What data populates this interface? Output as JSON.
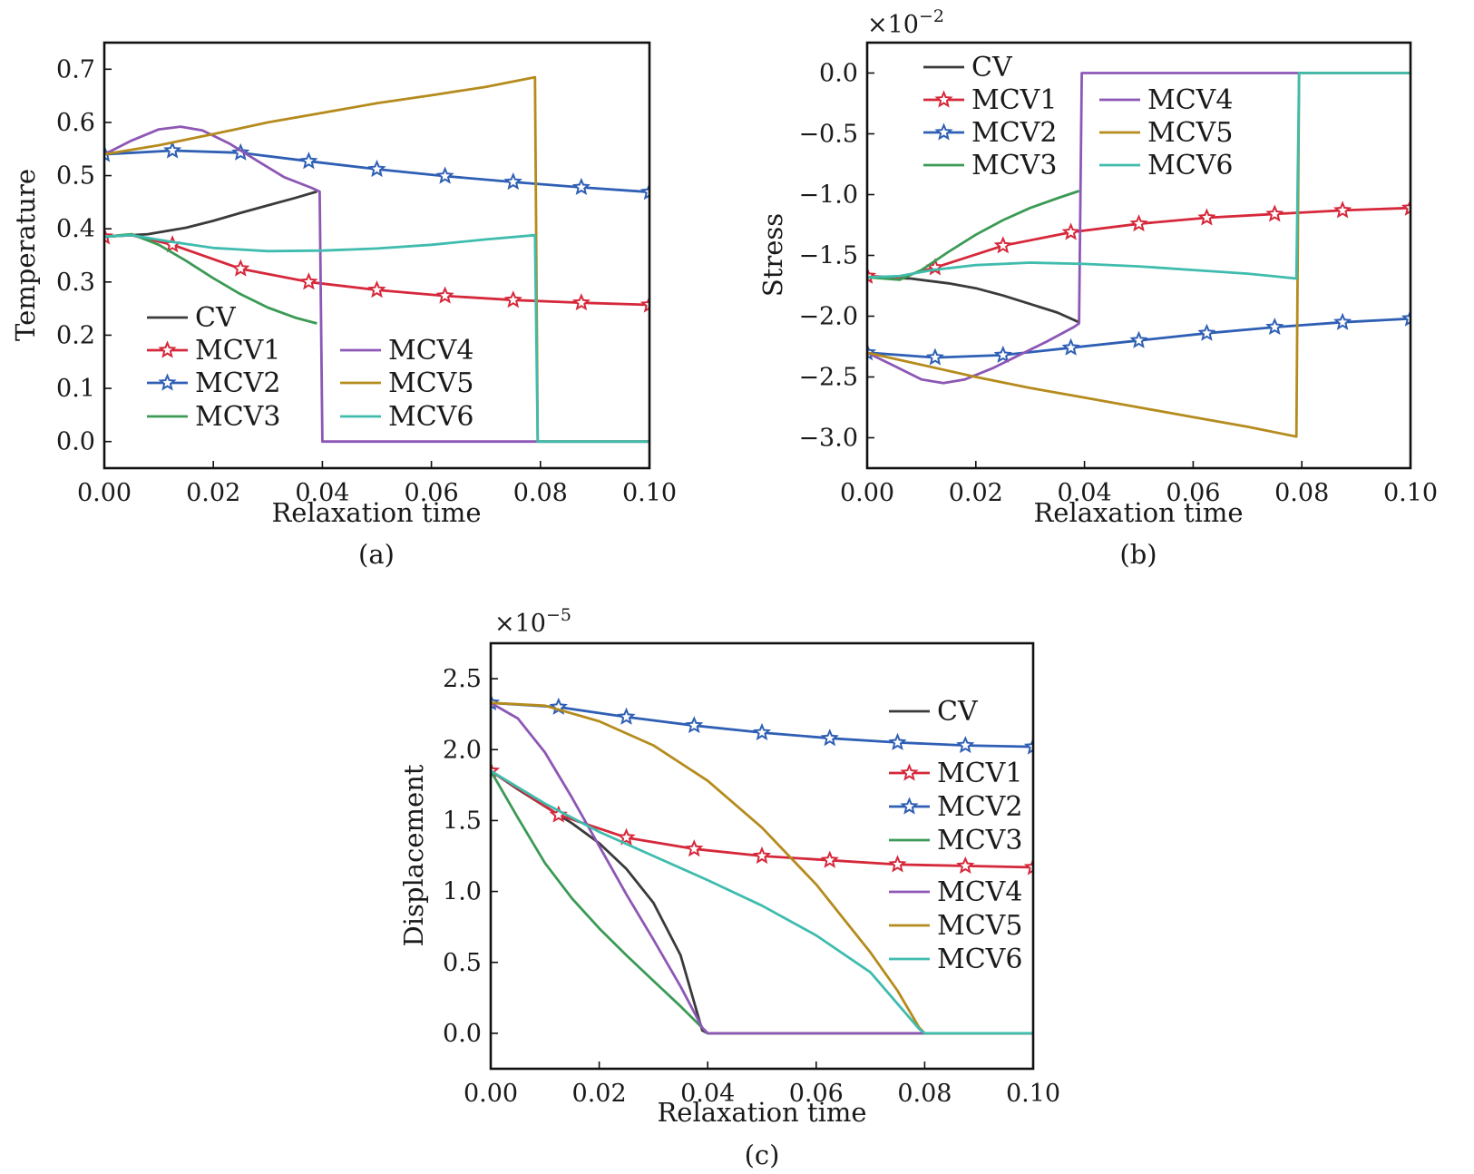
{
  "chart_data": [
    {
      "panel": "(a)",
      "type": "line",
      "xlabel": "Relaxation time",
      "ylabel": "Temperature",
      "exponent": "",
      "xlim": [
        0,
        0.1
      ],
      "ylim": [
        -0.05,
        0.75
      ],
      "xticks": [
        "0.00",
        "0.02",
        "0.04",
        "0.06",
        "0.08",
        "0.10"
      ],
      "yticks": [
        0.0,
        0.1,
        0.2,
        0.3,
        0.4,
        0.5,
        0.6,
        0.7
      ],
      "ytick_labels": [
        "0.0",
        "0.1",
        "0.2",
        "0.3",
        "0.4",
        "0.5",
        "0.6",
        "0.7"
      ],
      "legend": "lower-left, two columns",
      "series": [
        {
          "name": "CV",
          "color": "#3a3a3a",
          "marker": "none",
          "points": [
            [
              0,
              0.385
            ],
            [
              0.008,
              0.39
            ],
            [
              0.015,
              0.402
            ],
            [
              0.02,
              0.415
            ],
            [
              0.025,
              0.43
            ],
            [
              0.03,
              0.444
            ],
            [
              0.035,
              0.458
            ],
            [
              0.039,
              0.47
            ]
          ]
        },
        {
          "name": "MCV1",
          "color": "#d6283b",
          "marker": "star",
          "points": [
            [
              0,
              0.385
            ],
            [
              0.005,
              0.388
            ],
            [
              0.0125,
              0.37
            ],
            [
              0.025,
              0.325
            ],
            [
              0.0375,
              0.3
            ],
            [
              0.05,
              0.285
            ],
            [
              0.0625,
              0.274
            ],
            [
              0.075,
              0.266
            ],
            [
              0.0875,
              0.261
            ],
            [
              0.1,
              0.257
            ]
          ]
        },
        {
          "name": "MCV2",
          "color": "#2f5fb4",
          "marker": "star",
          "points": [
            [
              0,
              0.54
            ],
            [
              0.0125,
              0.547
            ],
            [
              0.025,
              0.543
            ],
            [
              0.0375,
              0.527
            ],
            [
              0.05,
              0.512
            ],
            [
              0.0625,
              0.499
            ],
            [
              0.075,
              0.488
            ],
            [
              0.0875,
              0.478
            ],
            [
              0.1,
              0.469
            ]
          ]
        },
        {
          "name": "MCV3",
          "color": "#3b9a55",
          "marker": "none",
          "points": [
            [
              0,
              0.385
            ],
            [
              0.005,
              0.39
            ],
            [
              0.01,
              0.37
            ],
            [
              0.015,
              0.34
            ],
            [
              0.02,
              0.307
            ],
            [
              0.025,
              0.277
            ],
            [
              0.03,
              0.252
            ],
            [
              0.035,
              0.233
            ],
            [
              0.039,
              0.222
            ]
          ]
        },
        {
          "name": "MCV4",
          "color": "#8d57b5",
          "marker": "none",
          "points": [
            [
              0,
              0.54
            ],
            [
              0.005,
              0.566
            ],
            [
              0.01,
              0.587
            ],
            [
              0.014,
              0.592
            ],
            [
              0.018,
              0.585
            ],
            [
              0.023,
              0.56
            ],
            [
              0.028,
              0.528
            ],
            [
              0.033,
              0.497
            ],
            [
              0.038,
              0.477
            ],
            [
              0.0395,
              0.47
            ],
            [
              0.04,
              0.0
            ],
            [
              0.1,
              0.0
            ]
          ]
        },
        {
          "name": "MCV5",
          "color": "#b58b1d",
          "marker": "none",
          "points": [
            [
              0,
              0.54
            ],
            [
              0.01,
              0.557
            ],
            [
              0.02,
              0.578
            ],
            [
              0.03,
              0.6
            ],
            [
              0.04,
              0.618
            ],
            [
              0.05,
              0.636
            ],
            [
              0.06,
              0.651
            ],
            [
              0.07,
              0.667
            ],
            [
              0.079,
              0.685
            ],
            [
              0.0795,
              0.0
            ],
            [
              0.1,
              0.0
            ]
          ]
        },
        {
          "name": "MCV6",
          "color": "#3fbcae",
          "marker": "none",
          "points": [
            [
              0,
              0.385
            ],
            [
              0.005,
              0.388
            ],
            [
              0.012,
              0.376
            ],
            [
              0.02,
              0.364
            ],
            [
              0.03,
              0.358
            ],
            [
              0.04,
              0.359
            ],
            [
              0.05,
              0.363
            ],
            [
              0.06,
              0.37
            ],
            [
              0.07,
              0.38
            ],
            [
              0.079,
              0.388
            ],
            [
              0.0795,
              0.0
            ],
            [
              0.1,
              0.0
            ]
          ]
        }
      ],
      "caption": "(a)"
    },
    {
      "panel": "(b)",
      "type": "line",
      "xlabel": "Relaxation time",
      "ylabel": "Stress",
      "exponent": "×10",
      "exponent_power": "−2",
      "xlim": [
        0,
        0.1
      ],
      "ylim": [
        -3.25,
        0.25
      ],
      "xticks": [
        "0.00",
        "0.02",
        "0.04",
        "0.06",
        "0.08",
        "0.10"
      ],
      "yticks": [
        0.0,
        -0.5,
        -1.0,
        -1.5,
        -2.0,
        -2.5,
        -3.0
      ],
      "ytick_labels": [
        "0.0",
        "−0.5",
        "−1.0",
        "−1.5",
        "−2.0",
        "−2.5",
        "−3.0"
      ],
      "legend": "top-left, two columns",
      "series": [
        {
          "name": "CV",
          "color": "#3a3a3a",
          "marker": "none",
          "points": [
            [
              0,
              -1.68
            ],
            [
              0.008,
              -1.69
            ],
            [
              0.015,
              -1.73
            ],
            [
              0.02,
              -1.77
            ],
            [
              0.025,
              -1.83
            ],
            [
              0.03,
              -1.9
            ],
            [
              0.035,
              -1.97
            ],
            [
              0.039,
              -2.05
            ]
          ]
        },
        {
          "name": "MCV1",
          "color": "#d6283b",
          "marker": "star",
          "points": [
            [
              0,
              -1.67
            ],
            [
              0.006,
              -1.68
            ],
            [
              0.0125,
              -1.6
            ],
            [
              0.025,
              -1.42
            ],
            [
              0.0375,
              -1.31
            ],
            [
              0.05,
              -1.24
            ],
            [
              0.0625,
              -1.19
            ],
            [
              0.075,
              -1.16
            ],
            [
              0.0875,
              -1.13
            ],
            [
              0.1,
              -1.11
            ]
          ]
        },
        {
          "name": "MCV2",
          "color": "#2f5fb4",
          "marker": "star",
          "points": [
            [
              0,
              -2.3
            ],
            [
              0.0125,
              -2.34
            ],
            [
              0.025,
              -2.32
            ],
            [
              0.0375,
              -2.26
            ],
            [
              0.05,
              -2.2
            ],
            [
              0.0625,
              -2.14
            ],
            [
              0.075,
              -2.09
            ],
            [
              0.0875,
              -2.05
            ],
            [
              0.1,
              -2.02
            ]
          ]
        },
        {
          "name": "MCV3",
          "color": "#3b9a55",
          "marker": "none",
          "points": [
            [
              0,
              -1.68
            ],
            [
              0.006,
              -1.7
            ],
            [
              0.01,
              -1.62
            ],
            [
              0.015,
              -1.47
            ],
            [
              0.02,
              -1.33
            ],
            [
              0.025,
              -1.21
            ],
            [
              0.03,
              -1.11
            ],
            [
              0.035,
              -1.03
            ],
            [
              0.039,
              -0.97
            ]
          ]
        },
        {
          "name": "MCV4",
          "color": "#8d57b5",
          "marker": "none",
          "points": [
            [
              0,
              -2.3
            ],
            [
              0.005,
              -2.41
            ],
            [
              0.01,
              -2.52
            ],
            [
              0.014,
              -2.55
            ],
            [
              0.018,
              -2.52
            ],
            [
              0.023,
              -2.43
            ],
            [
              0.028,
              -2.32
            ],
            [
              0.033,
              -2.21
            ],
            [
              0.038,
              -2.09
            ],
            [
              0.039,
              -2.06
            ],
            [
              0.0395,
              0.0
            ],
            [
              0.1,
              0.0
            ]
          ]
        },
        {
          "name": "MCV5",
          "color": "#b58b1d",
          "marker": "none",
          "points": [
            [
              0,
              -2.3
            ],
            [
              0.01,
              -2.4
            ],
            [
              0.02,
              -2.5
            ],
            [
              0.03,
              -2.59
            ],
            [
              0.04,
              -2.67
            ],
            [
              0.05,
              -2.75
            ],
            [
              0.06,
              -2.83
            ],
            [
              0.07,
              -2.91
            ],
            [
              0.079,
              -2.99
            ],
            [
              0.0795,
              0.0
            ],
            [
              0.1,
              0.0
            ]
          ]
        },
        {
          "name": "MCV6",
          "color": "#3fbcae",
          "marker": "none",
          "points": [
            [
              0,
              -1.68
            ],
            [
              0.006,
              -1.67
            ],
            [
              0.012,
              -1.62
            ],
            [
              0.02,
              -1.58
            ],
            [
              0.03,
              -1.56
            ],
            [
              0.04,
              -1.57
            ],
            [
              0.05,
              -1.59
            ],
            [
              0.06,
              -1.62
            ],
            [
              0.07,
              -1.65
            ],
            [
              0.079,
              -1.69
            ],
            [
              0.0795,
              0.0
            ],
            [
              0.1,
              0.0
            ]
          ]
        }
      ],
      "caption": "(b)"
    },
    {
      "panel": "(c)",
      "type": "line",
      "xlabel": "Relaxation time",
      "ylabel": "Displacement",
      "exponent": "×10",
      "exponent_power": "−5",
      "xlim": [
        0,
        0.1
      ],
      "ylim": [
        -0.25,
        2.75
      ],
      "xticks": [
        "0.00",
        "0.02",
        "0.04",
        "0.06",
        "0.08",
        "0.10"
      ],
      "yticks": [
        0.0,
        0.5,
        1.0,
        1.5,
        2.0,
        2.5
      ],
      "ytick_labels": [
        "0.0",
        "0.5",
        "1.0",
        "1.5",
        "2.0",
        "2.5"
      ],
      "legend": "right, single column",
      "series": [
        {
          "name": "CV",
          "color": "#3a3a3a",
          "marker": "none",
          "points": [
            [
              0,
              1.85
            ],
            [
              0.005,
              1.72
            ],
            [
              0.01,
              1.6
            ],
            [
              0.015,
              1.48
            ],
            [
              0.02,
              1.34
            ],
            [
              0.025,
              1.16
            ],
            [
              0.03,
              0.92
            ],
            [
              0.035,
              0.55
            ],
            [
              0.039,
              0.02
            ],
            [
              0.04,
              0.0
            ],
            [
              0.1,
              0.0
            ]
          ]
        },
        {
          "name": "MCV1",
          "color": "#d6283b",
          "marker": "star",
          "points": [
            [
              0,
              1.85
            ],
            [
              0.0125,
              1.54
            ],
            [
              0.025,
              1.38
            ],
            [
              0.0375,
              1.3
            ],
            [
              0.05,
              1.25
            ],
            [
              0.0625,
              1.22
            ],
            [
              0.075,
              1.19
            ],
            [
              0.0875,
              1.18
            ],
            [
              0.1,
              1.17
            ]
          ]
        },
        {
          "name": "MCV2",
          "color": "#2f5fb4",
          "marker": "star",
          "points": [
            [
              0,
              2.33
            ],
            [
              0.0125,
              2.3
            ],
            [
              0.025,
              2.23
            ],
            [
              0.0375,
              2.17
            ],
            [
              0.05,
              2.12
            ],
            [
              0.0625,
              2.08
            ],
            [
              0.075,
              2.05
            ],
            [
              0.0875,
              2.03
            ],
            [
              0.1,
              2.02
            ]
          ]
        },
        {
          "name": "MCV3",
          "color": "#3b9a55",
          "marker": "none",
          "points": [
            [
              0,
              1.85
            ],
            [
              0.005,
              1.52
            ],
            [
              0.01,
              1.2
            ],
            [
              0.015,
              0.95
            ],
            [
              0.02,
              0.74
            ],
            [
              0.025,
              0.55
            ],
            [
              0.03,
              0.37
            ],
            [
              0.035,
              0.19
            ],
            [
              0.04,
              0.0
            ],
            [
              0.1,
              0.0
            ]
          ]
        },
        {
          "name": "MCV4",
          "color": "#8d57b5",
          "marker": "none",
          "points": [
            [
              0,
              2.33
            ],
            [
              0.005,
              2.22
            ],
            [
              0.01,
              1.98
            ],
            [
              0.015,
              1.66
            ],
            [
              0.02,
              1.32
            ],
            [
              0.025,
              0.98
            ],
            [
              0.03,
              0.66
            ],
            [
              0.035,
              0.33
            ],
            [
              0.039,
              0.04
            ],
            [
              0.04,
              0.0
            ],
            [
              0.1,
              0.0
            ]
          ]
        },
        {
          "name": "MCV5",
          "color": "#b58b1d",
          "marker": "none",
          "points": [
            [
              0,
              2.33
            ],
            [
              0.01,
              2.31
            ],
            [
              0.02,
              2.2
            ],
            [
              0.03,
              2.03
            ],
            [
              0.04,
              1.78
            ],
            [
              0.05,
              1.45
            ],
            [
              0.06,
              1.05
            ],
            [
              0.07,
              0.57
            ],
            [
              0.075,
              0.3
            ],
            [
              0.079,
              0.04
            ],
            [
              0.08,
              0.0
            ],
            [
              0.1,
              0.0
            ]
          ]
        },
        {
          "name": "MCV6",
          "color": "#3fbcae",
          "marker": "none",
          "points": [
            [
              0,
              1.85
            ],
            [
              0.01,
              1.62
            ],
            [
              0.02,
              1.42
            ],
            [
              0.03,
              1.25
            ],
            [
              0.04,
              1.08
            ],
            [
              0.05,
              0.9
            ],
            [
              0.06,
              0.69
            ],
            [
              0.07,
              0.43
            ],
            [
              0.079,
              0.03
            ],
            [
              0.08,
              0.0
            ],
            [
              0.1,
              0.0
            ]
          ]
        }
      ],
      "caption": "(c)"
    }
  ]
}
